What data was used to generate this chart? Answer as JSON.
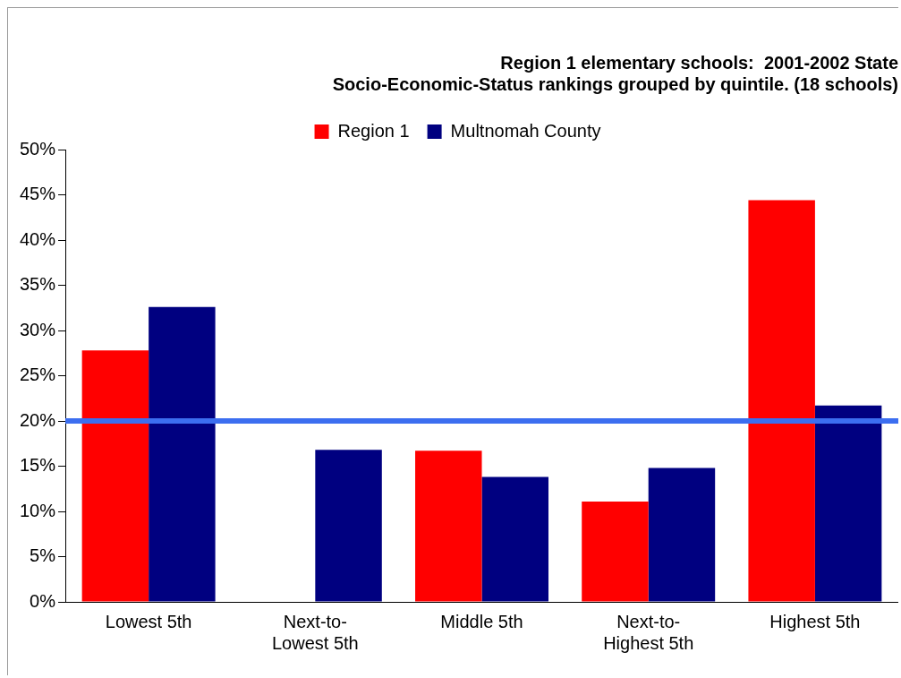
{
  "chart_data": {
    "type": "bar",
    "title": "Region 1 elementary schools:  2001-2002 State\nSocio-Economic-Status rankings grouped by quintile. (18 schools)",
    "categories": [
      "Lowest 5th",
      "Next-to-Lowest 5th",
      "Middle 5th",
      "Next-to-Highest 5th",
      "Highest 5th"
    ],
    "series": [
      {
        "name": "Region 1",
        "color": "#ff0000",
        "values": [
          27.8,
          0,
          16.7,
          11.1,
          44.4
        ]
      },
      {
        "name": "Multnomah County",
        "color": "#000080",
        "values": [
          32.6,
          16.8,
          13.8,
          14.8,
          21.7
        ]
      }
    ],
    "ylim": [
      0,
      50
    ],
    "yticks": [
      {
        "value": 0,
        "label": "0%"
      },
      {
        "value": 5,
        "label": "5%"
      },
      {
        "value": 10,
        "label": "10%"
      },
      {
        "value": 15,
        "label": "15%"
      },
      {
        "value": 20,
        "label": "20%"
      },
      {
        "value": 25,
        "label": "25%"
      },
      {
        "value": 30,
        "label": "30%"
      },
      {
        "value": 35,
        "label": "35%"
      },
      {
        "value": 40,
        "label": "40%"
      },
      {
        "value": 45,
        "label": "45%"
      },
      {
        "value": 50,
        "label": "50%"
      }
    ],
    "ref_lines": [
      {
        "axis": "y",
        "value": 20,
        "color": "#3c6ef0"
      }
    ],
    "grid": false,
    "legend": "top"
  }
}
